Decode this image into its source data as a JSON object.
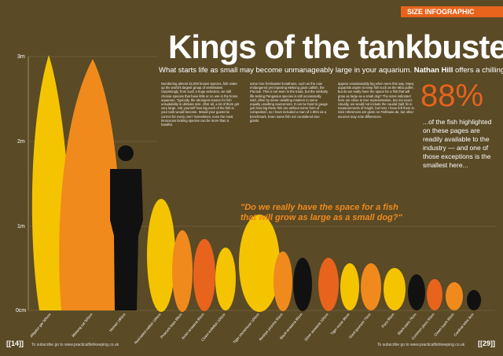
{
  "header": {
    "tag": "SIZE INFOGRAPHIC",
    "title": "Kings of the tankbusters",
    "subtitle_lead": "What starts life as small may become unmanageably large in your aquarium.",
    "subtitle_author": "Nathan Hill",
    "subtitle_tail": "offers a chilling warning."
  },
  "axis": {
    "labels": [
      "3m",
      "2m",
      "1m",
      "0cm"
    ]
  },
  "fish_labels": [
    "Alligator gar 305cm",
    "Mekong cat 300cm",
    "Human 180cm",
    "Red-tailed catfish 134cm",
    "Peacock bass 99cm",
    "Asian arowana 90cm",
    "Clown knifefish 100cm",
    "Tiger shovelnose 100cm",
    "Redeye piranha 50cm",
    "Black arowana 90cm",
    "Silver arowana 100cm",
    "Tiger oscar 36cm",
    "Giant gourami 70cm",
    "Pacu 90cm",
    "Black pacu 76cm",
    "Common pleco 50cm",
    "Clown loach 30cm",
    "Cardinal tetra 3cm"
  ],
  "body": {
    "columns": [
      "Numbering almost 32,000 known species, fish make up the world's largest group of vertebrates. Surprisingly, from such a huge selection, we still choose species that have little or no use in the home aquarium. Typically, the strongest reason for fish unsuitability is ultimate size. After all, a lot of them get very large. Ask yourself how big each of the fish in your tank would become. Would your guess be correct for every one? Sometimes, even the most innocuous looking species can be more than a handful.",
      "some true freshwater leviathans, such as the now endangered yet imposing Mekong giant catfish, the Pla buk. This is not seen in the trade, but the similarly life-testing Pangasius species is still occasionally sold, often by some unwitting retailers to some equally unwitting newcomers. It can be hard to gauge just how big these fish are without some form of comparison, so I have included a man of 1.80m as a benchmark. Even some fish not considered true giants",
      "appear unsustainably big when seen this way. Many aquarists aspire to keep fish such as the Mbu puffer, but do we really have the space for a fish that will grow as large as a small dog? The sizes indicated here are close to true representation, but not exact. Usually, we would not include the caudal (tail) fin in measurements of length, but here I have left them in. Size references are given on Fishbase.de, but other sources may note differences."
    ]
  },
  "quote": "\"Do we really have the space for a fish that will grow as large as a small dog?\"",
  "stat": {
    "figure": "88%",
    "text": "...of the fish highlighted on these pages are readily available to the industry — and one of those exceptions is the smallest here..."
  },
  "footer": {
    "left_page": "[[14]]",
    "left_text": "To subscribe go to www.practicalfishkeeping.co.uk",
    "right_text": "To subscribe go to www.practicalfishkeeping.co.uk",
    "right_page": "[[29]]"
  }
}
